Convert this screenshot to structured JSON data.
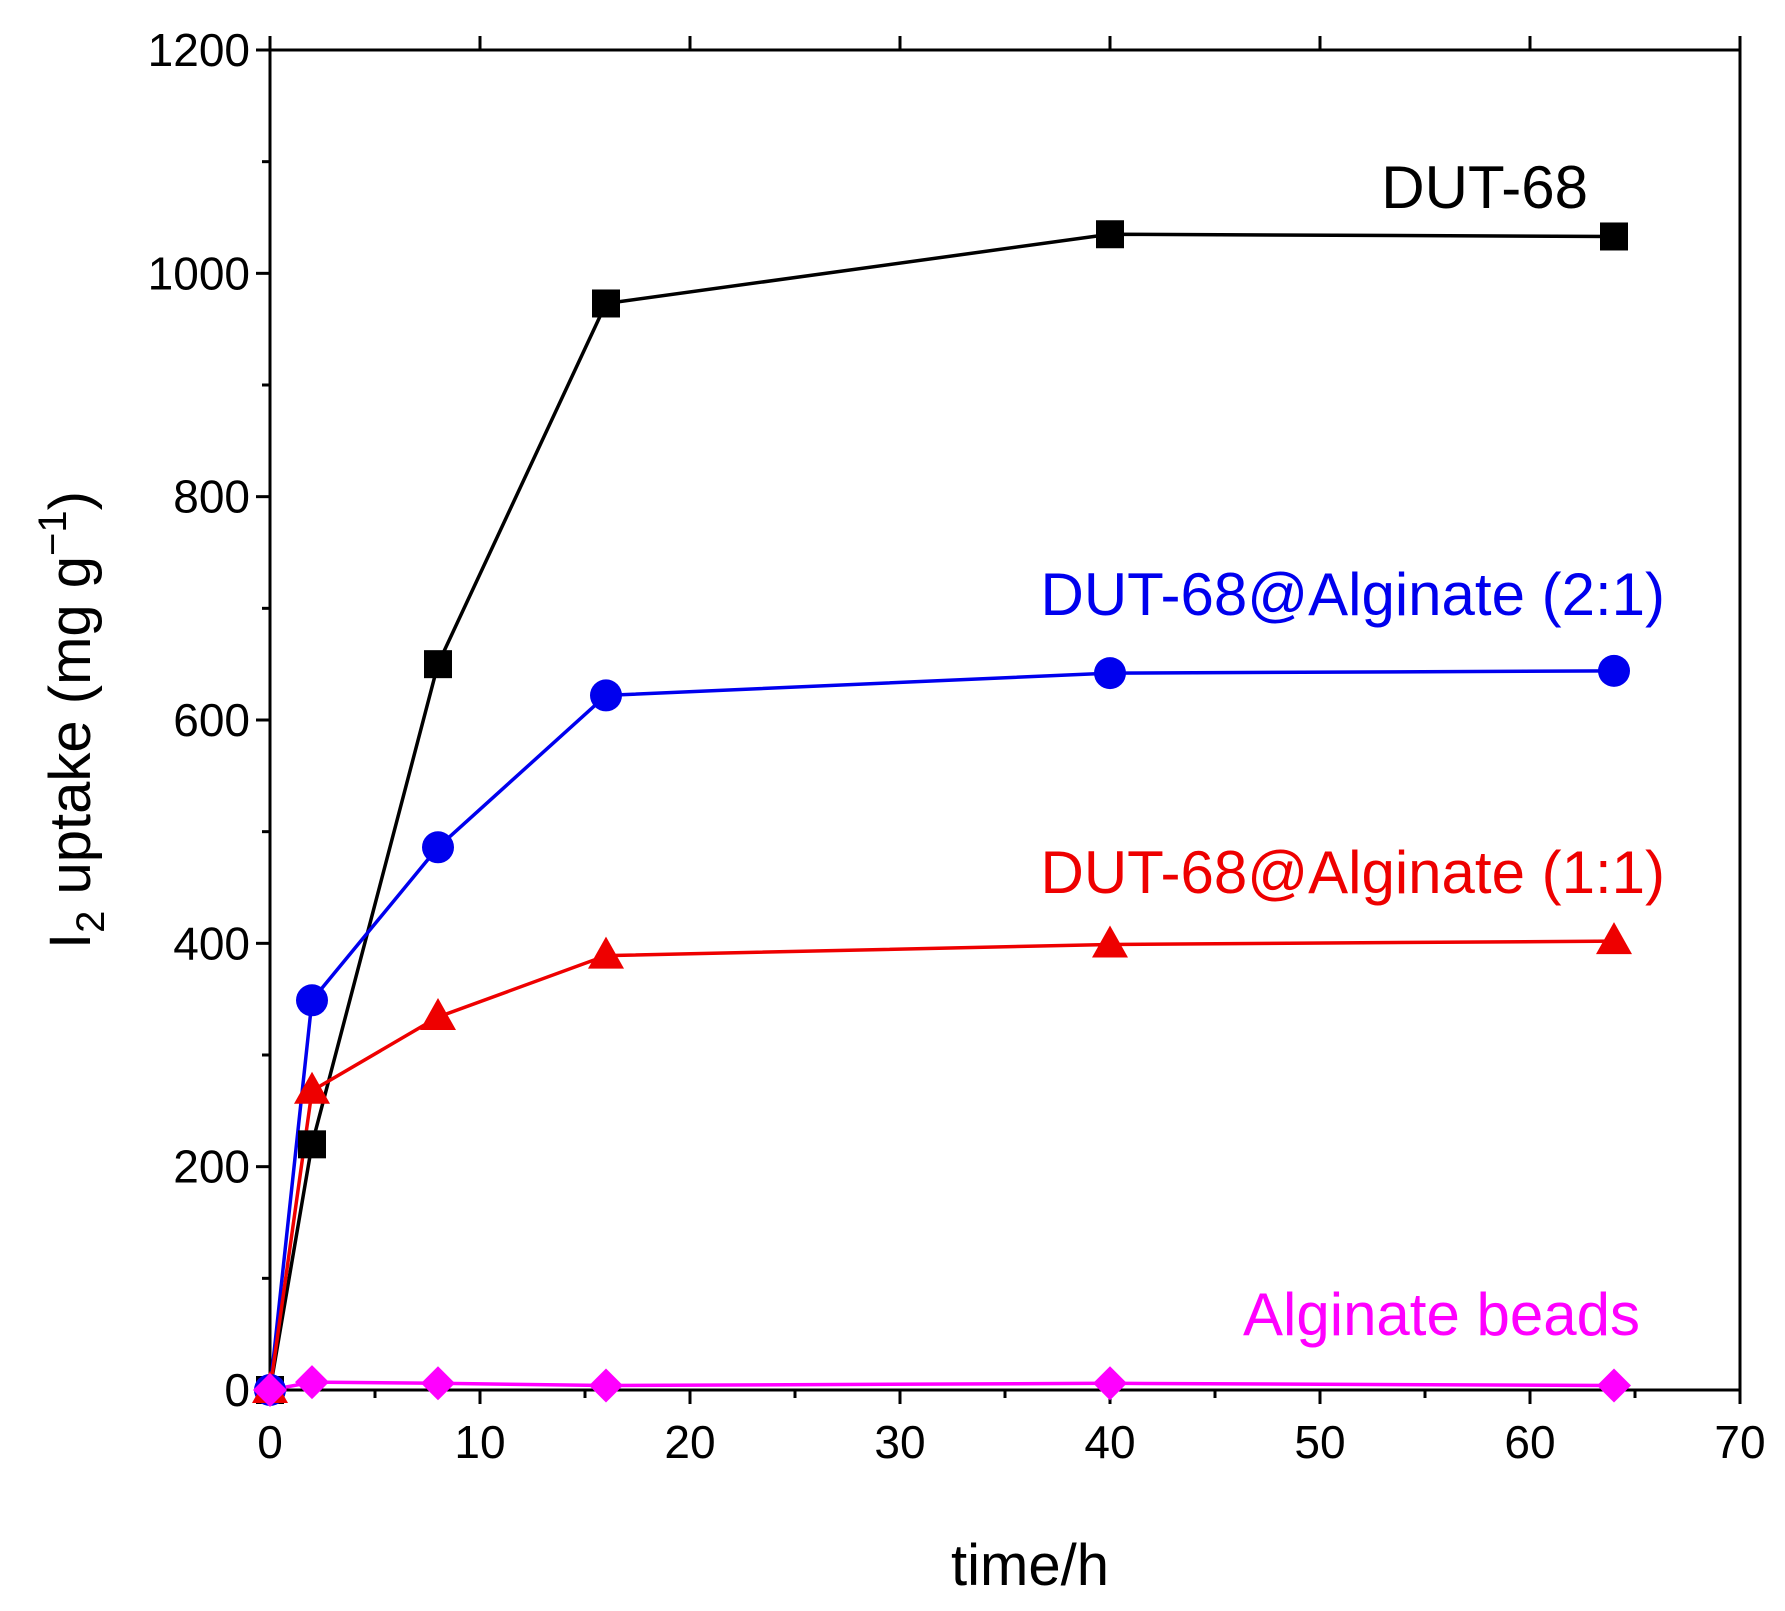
{
  "chart_data": {
    "type": "line",
    "xlabel": "time/h",
    "ylabel": {
      "main": "I",
      "sub": "2",
      "rest": " uptake (mg g",
      "sup": "−1",
      "close": ")"
    },
    "xlim": [
      0,
      70
    ],
    "ylim": [
      0,
      1200
    ],
    "x_ticks": [
      "0",
      "10",
      "20",
      "30",
      "40",
      "50",
      "60",
      "70"
    ],
    "y_ticks": [
      "0",
      "200",
      "400",
      "600",
      "800",
      "1000",
      "1200"
    ],
    "grid": false,
    "series": [
      {
        "name": "DUT-68",
        "color": "#000000",
        "marker": "square",
        "x": [
          0,
          2,
          8,
          16,
          40,
          64
        ],
        "y": [
          0,
          220,
          650,
          973,
          1035,
          1033
        ]
      },
      {
        "name": "DUT-68@Alginate (2:1)",
        "color": "#0000ee",
        "marker": "circle",
        "x": [
          0,
          2,
          8,
          16,
          40,
          64
        ],
        "y": [
          0,
          349,
          486,
          622,
          642,
          644
        ]
      },
      {
        "name": "DUT-68@Alginate (1:1)",
        "color": "#ee0000",
        "marker": "triangle",
        "x": [
          0,
          2,
          8,
          16,
          40,
          64
        ],
        "y": [
          0,
          268,
          334,
          389,
          399,
          402
        ]
      },
      {
        "name": "Alginate beads",
        "color": "#ff00ff",
        "marker": "diamond",
        "x": [
          0,
          2,
          8,
          16,
          40,
          64
        ],
        "y": [
          0,
          7,
          6,
          4,
          6,
          4
        ]
      }
    ]
  }
}
